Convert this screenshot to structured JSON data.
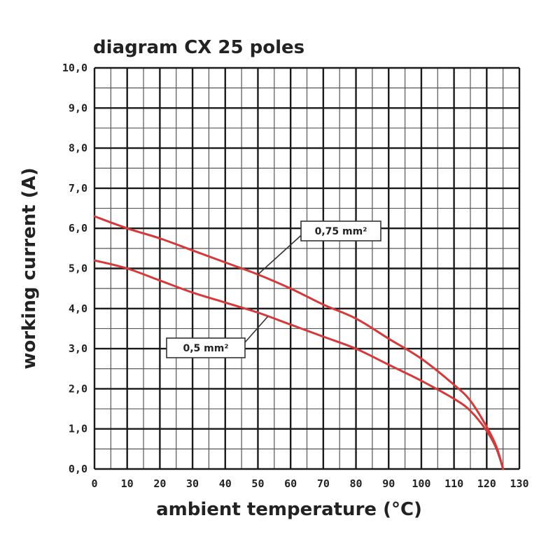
{
  "chart_data": {
    "type": "line",
    "title": "diagram CX 25 poles",
    "xlabel": "ambient temperature (°C)",
    "ylabel": "working current (A)",
    "xlim": [
      0,
      130
    ],
    "ylim": [
      0,
      10
    ],
    "grid": true,
    "x_ticks": [
      "0",
      "10",
      "20",
      "30",
      "40",
      "50",
      "60",
      "70",
      "80",
      "90",
      "100",
      "110",
      "120",
      "130"
    ],
    "y_ticks": [
      "0,0",
      "1,0",
      "2,0",
      "3,0",
      "4,0",
      "5,0",
      "6,0",
      "7,0",
      "8,0",
      "9,0",
      "10,0"
    ],
    "series": [
      {
        "name": "0,75 mm²",
        "color": "#d43a3a",
        "x": [
          0,
          10,
          20,
          30,
          40,
          50,
          60,
          70,
          80,
          90,
          100,
          110,
          115,
          120,
          123,
          125
        ],
        "y": [
          6.3,
          6.0,
          5.75,
          5.45,
          5.15,
          4.85,
          4.5,
          4.1,
          3.75,
          3.25,
          2.75,
          2.1,
          1.7,
          1.05,
          0.55,
          0.0
        ]
      },
      {
        "name": "0,5 mm²",
        "color": "#d43a3a",
        "x": [
          0,
          10,
          20,
          30,
          40,
          50,
          60,
          70,
          80,
          90,
          100,
          110,
          115,
          120,
          123,
          125
        ],
        "y": [
          5.2,
          5.0,
          4.7,
          4.4,
          4.15,
          3.9,
          3.6,
          3.3,
          3.0,
          2.6,
          2.2,
          1.75,
          1.45,
          0.95,
          0.5,
          0.0
        ]
      }
    ],
    "annotations": [
      {
        "text": "0,75 mm²",
        "series": 0,
        "point_x": 50,
        "point_y": 4.85
      },
      {
        "text": "0,5 mm²",
        "series": 1,
        "point_x": 53,
        "point_y": 3.8
      }
    ]
  }
}
